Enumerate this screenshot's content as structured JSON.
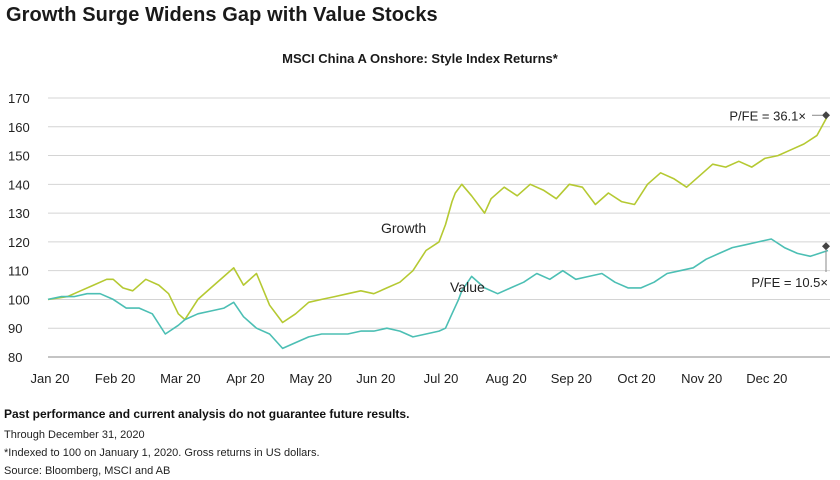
{
  "headline": "Growth Surge Widens Gap with Value Stocks",
  "footnotes": {
    "disclaimer": "Past performance and current analysis do not guarantee future results.",
    "through": "Through December 31, 2020",
    "indexed": "*Indexed to 100 on January 1, 2020. Gross returns in US dollars.",
    "source": "Source: Bloomberg, MSCI and AB"
  },
  "chart_data": {
    "type": "line",
    "title": "MSCI China A Onshore: Style Index Returns*",
    "xlabel": "",
    "ylabel": "",
    "ylim": [
      80,
      170
    ],
    "yticks": [
      80,
      90,
      100,
      110,
      120,
      130,
      140,
      150,
      160,
      170
    ],
    "x_tick_labels": [
      "Jan 20",
      "Feb 20",
      "Mar 20",
      "Apr 20",
      "May 20",
      "Jun 20",
      "Jul 20",
      "Aug 20",
      "Sep 20",
      "Oct 20",
      "Nov 20",
      "Dec 20"
    ],
    "grid": true,
    "legend": "none",
    "series": [
      {
        "name": "Growth",
        "color": "#b5c932",
        "end_label": "P/FE = 36.1×",
        "x": [
          0,
          0.3,
          0.5,
          0.7,
          0.9,
          1.0,
          1.15,
          1.3,
          1.5,
          1.7,
          1.85,
          2.0,
          2.1,
          2.3,
          2.5,
          2.7,
          2.85,
          3.0,
          3.2,
          3.4,
          3.6,
          3.8,
          4.0,
          4.2,
          4.4,
          4.6,
          4.8,
          5.0,
          5.2,
          5.4,
          5.6,
          5.8,
          6.0,
          6.1,
          6.2,
          6.25,
          6.35,
          6.5,
          6.7,
          6.8,
          7.0,
          7.2,
          7.4,
          7.6,
          7.8,
          8.0,
          8.2,
          8.4,
          8.6,
          8.8,
          9.0,
          9.2,
          9.4,
          9.6,
          9.8,
          10.0,
          10.2,
          10.4,
          10.6,
          10.8,
          11.0,
          11.2,
          11.4,
          11.6,
          11.8,
          11.97
        ],
        "y": [
          100,
          101,
          103,
          105,
          107,
          107,
          104,
          103,
          107,
          105,
          102,
          95,
          93,
          100,
          104,
          108,
          111,
          105,
          109,
          98,
          92,
          95,
          99,
          100,
          101,
          102,
          103,
          102,
          104,
          106,
          110,
          117,
          120,
          126,
          134,
          137,
          140,
          136,
          130,
          135,
          139,
          136,
          140,
          138,
          135,
          140,
          139,
          133,
          137,
          134,
          133,
          140,
          144,
          142,
          139,
          143,
          147,
          146,
          148,
          146,
          149,
          150,
          152,
          154,
          157,
          164
        ]
      },
      {
        "name": "Value",
        "color": "#4cbfb4",
        "end_label": "P/FE = 10.5×",
        "x": [
          0,
          0.2,
          0.4,
          0.6,
          0.8,
          1.0,
          1.2,
          1.4,
          1.6,
          1.8,
          2.0,
          2.1,
          2.3,
          2.5,
          2.7,
          2.85,
          3.0,
          3.2,
          3.4,
          3.6,
          3.8,
          4.0,
          4.2,
          4.4,
          4.6,
          4.8,
          5.0,
          5.2,
          5.4,
          5.6,
          5.8,
          6.0,
          6.1,
          6.2,
          6.3,
          6.35,
          6.5,
          6.7,
          6.9,
          7.1,
          7.3,
          7.5,
          7.7,
          7.9,
          8.1,
          8.3,
          8.5,
          8.7,
          8.9,
          9.1,
          9.3,
          9.5,
          9.7,
          9.9,
          10.1,
          10.3,
          10.5,
          10.7,
          10.9,
          11.1,
          11.3,
          11.5,
          11.7,
          11.97
        ],
        "y": [
          100,
          101,
          101,
          102,
          102,
          100,
          97,
          97,
          95,
          88,
          91,
          93,
          95,
          96,
          97,
          99,
          94,
          90,
          88,
          83,
          85,
          87,
          88,
          88,
          88,
          89,
          89,
          90,
          89,
          87,
          88,
          89,
          90,
          95,
          100,
          103,
          108,
          104,
          102,
          104,
          106,
          109,
          107,
          110,
          107,
          108,
          109,
          106,
          104,
          104,
          106,
          109,
          110,
          111,
          114,
          116,
          118,
          119,
          120,
          121,
          118,
          116,
          115,
          117
        ]
      }
    ],
    "annotations": [
      {
        "text": "Growth"
      },
      {
        "text": "Value"
      }
    ]
  }
}
